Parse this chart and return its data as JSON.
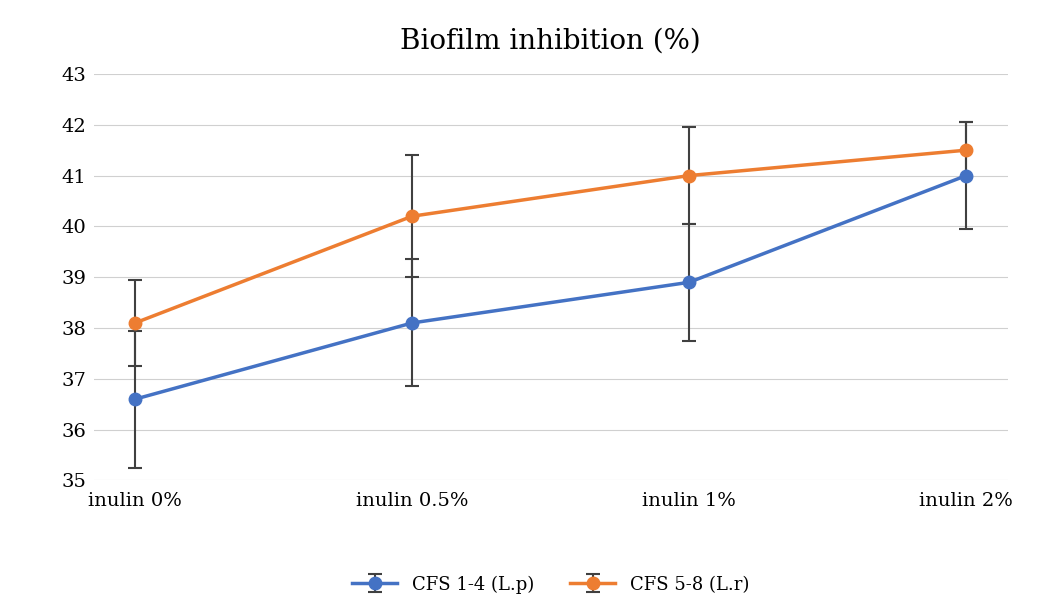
{
  "title": "Biofilm inhibition (%)",
  "x_labels": [
    "inulin 0%",
    "inulin 0.5%",
    "inulin 1%",
    "inulin 2%"
  ],
  "series": [
    {
      "label": "CFS 1-4 (L.p)",
      "color": "#4472C4",
      "marker": "o",
      "values": [
        36.6,
        38.1,
        38.9,
        41.0
      ],
      "errors": [
        1.35,
        1.25,
        1.15,
        1.05
      ]
    },
    {
      "label": "CFS 5-8 (L.r)",
      "color": "#ED7D31",
      "marker": "o",
      "values": [
        38.1,
        40.2,
        41.0,
        41.5
      ],
      "errors": [
        0.85,
        1.2,
        0.95,
        0.55
      ]
    }
  ],
  "ylim": [
    35,
    43
  ],
  "yticks": [
    35,
    36,
    37,
    38,
    39,
    40,
    41,
    42,
    43
  ],
  "error_color": "#404040",
  "grid_color": "#d0d0d0",
  "background_color": "#ffffff",
  "title_fontsize": 20,
  "tick_fontsize": 14,
  "legend_fontsize": 13
}
